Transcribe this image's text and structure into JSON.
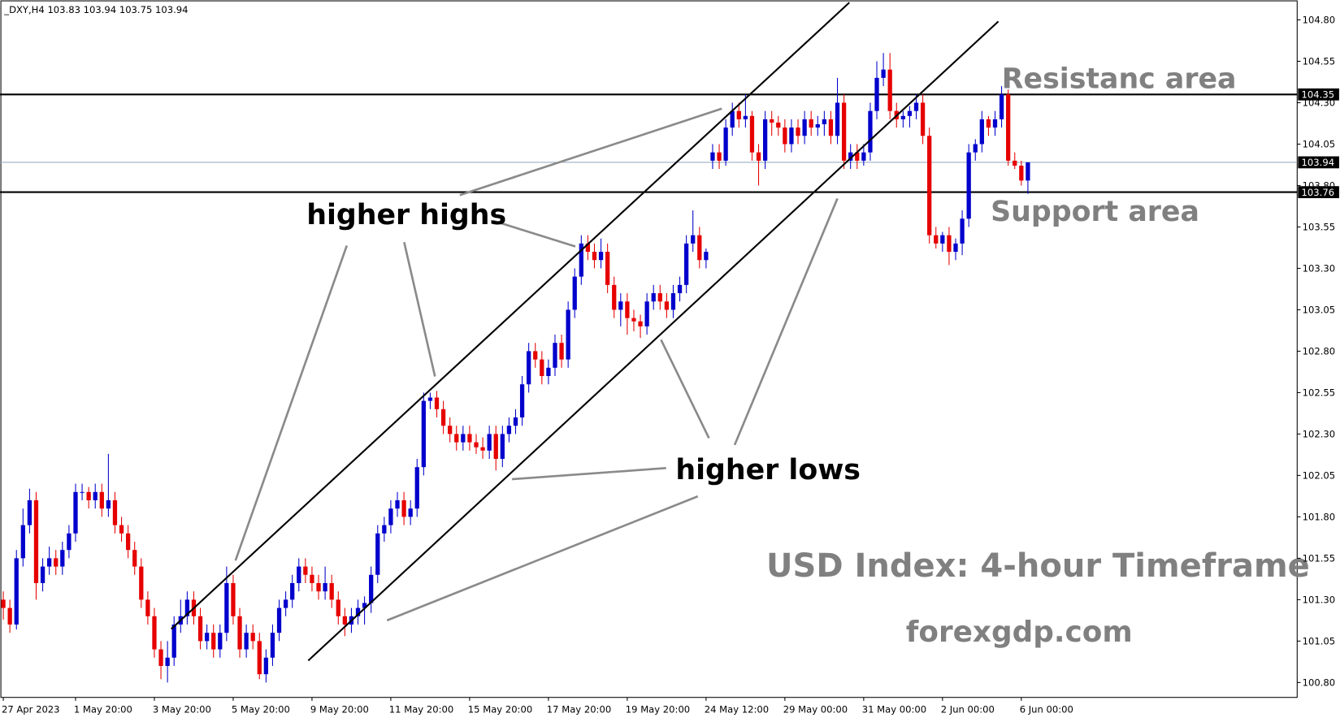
{
  "chart_data": {
    "type": "candlestick",
    "header": "_DXY,H4  103.83 103.94 103.75 103.94",
    "ylim": [
      100.71,
      104.92
    ],
    "yticks": [
      {
        "value": 104.8,
        "label": "104.80"
      },
      {
        "value": 104.55,
        "label": "104.55"
      },
      {
        "value": 104.3,
        "label": "104.30"
      },
      {
        "value": 104.05,
        "label": "104.05"
      },
      {
        "value": 103.8,
        "label": "103.80"
      },
      {
        "value": 103.55,
        "label": "103.55"
      },
      {
        "value": 103.3,
        "label": "103.30"
      },
      {
        "value": 103.05,
        "label": "103.05"
      },
      {
        "value": 102.8,
        "label": "102.80"
      },
      {
        "value": 102.55,
        "label": "102.55"
      },
      {
        "value": 102.3,
        "label": "102.30"
      },
      {
        "value": 102.05,
        "label": "102.05"
      },
      {
        "value": 101.8,
        "label": "101.80"
      },
      {
        "value": 101.55,
        "label": "101.55"
      },
      {
        "value": 101.3,
        "label": "101.30"
      },
      {
        "value": 101.05,
        "label": "101.05"
      },
      {
        "value": 100.8,
        "label": "100.80"
      }
    ],
    "xlim": [
      -0.5,
      197
    ],
    "xticks": [
      {
        "value": 0,
        "label": "27 Apr 2023"
      },
      {
        "value": 11,
        "label": "1 May 20:00"
      },
      {
        "value": 23,
        "label": "3 May 20:00"
      },
      {
        "value": 35,
        "label": "5 May 20:00"
      },
      {
        "value": 47,
        "label": "9 May 20:00"
      },
      {
        "value": 59,
        "label": "11 May 20:00"
      },
      {
        "value": 71,
        "label": "15 May 20:00"
      },
      {
        "value": 83,
        "label": "17 May 20:00"
      },
      {
        "value": 95,
        "label": "19 May 20:00"
      },
      {
        "value": 107,
        "label": "24 May 12:00"
      },
      {
        "value": 119,
        "label": "29 May 00:00"
      },
      {
        "value": 131,
        "label": "31 May 00:00"
      },
      {
        "value": 143,
        "label": "2 Jun 00:00"
      },
      {
        "value": 155,
        "label": "6 Jun 00:00"
      }
    ],
    "up_color": "#0000cc",
    "down_color": "#e60000",
    "candles": [
      [
        101.3,
        101.35,
        101.18,
        101.25
      ],
      [
        101.25,
        101.3,
        101.1,
        101.15
      ],
      [
        101.15,
        101.6,
        101.12,
        101.55
      ],
      [
        101.55,
        101.85,
        101.5,
        101.75
      ],
      [
        101.75,
        101.97,
        101.7,
        101.9
      ],
      [
        101.9,
        101.95,
        101.3,
        101.4
      ],
      [
        101.4,
        101.55,
        101.35,
        101.5
      ],
      [
        101.5,
        101.62,
        101.45,
        101.55
      ],
      [
        101.55,
        101.6,
        101.45,
        101.5
      ],
      [
        101.5,
        101.65,
        101.45,
        101.6
      ],
      [
        101.6,
        101.75,
        101.55,
        101.7
      ],
      [
        101.7,
        102.0,
        101.65,
        101.95
      ],
      [
        101.95,
        102.0,
        101.9,
        101.95
      ],
      [
        101.95,
        101.98,
        101.85,
        101.9
      ],
      [
        101.9,
        102.0,
        101.85,
        101.95
      ],
      [
        101.95,
        102.0,
        101.8,
        101.85
      ],
      [
        101.85,
        102.18,
        101.8,
        101.9
      ],
      [
        101.9,
        101.95,
        101.7,
        101.75
      ],
      [
        101.75,
        101.8,
        101.65,
        101.7
      ],
      [
        101.7,
        101.75,
        101.55,
        101.6
      ],
      [
        101.6,
        101.65,
        101.45,
        101.5
      ],
      [
        101.5,
        101.55,
        101.25,
        101.3
      ],
      [
        101.3,
        101.35,
        101.15,
        101.2
      ],
      [
        101.2,
        101.25,
        100.95,
        101.0
      ],
      [
        101.0,
        101.05,
        100.82,
        100.9
      ],
      [
        100.9,
        101.05,
        100.8,
        100.95
      ],
      [
        100.95,
        101.2,
        100.9,
        101.15
      ],
      [
        101.15,
        101.3,
        101.1,
        101.2
      ],
      [
        101.2,
        101.35,
        101.15,
        101.3
      ],
      [
        101.3,
        101.35,
        101.15,
        101.2
      ],
      [
        101.2,
        101.25,
        101.0,
        101.05
      ],
      [
        101.05,
        101.15,
        101.0,
        101.1
      ],
      [
        101.1,
        101.15,
        100.95,
        101.0
      ],
      [
        101.0,
        101.15,
        100.95,
        101.1
      ],
      [
        101.1,
        101.5,
        101.05,
        101.4
      ],
      [
        101.4,
        101.45,
        101.15,
        101.2
      ],
      [
        101.2,
        101.25,
        100.95,
        101.0
      ],
      [
        101.0,
        101.15,
        100.95,
        101.1
      ],
      [
        101.1,
        101.15,
        101.0,
        101.05
      ],
      [
        101.05,
        101.1,
        100.82,
        100.85
      ],
      [
        100.85,
        101.0,
        100.8,
        100.95
      ],
      [
        100.95,
        101.15,
        100.9,
        101.1
      ],
      [
        101.1,
        101.3,
        101.05,
        101.25
      ],
      [
        101.25,
        101.35,
        101.2,
        101.3
      ],
      [
        101.3,
        101.45,
        101.25,
        101.4
      ],
      [
        101.4,
        101.55,
        101.35,
        101.5
      ],
      [
        101.5,
        101.55,
        101.4,
        101.45
      ],
      [
        101.45,
        101.5,
        101.35,
        101.4
      ],
      [
        101.4,
        101.45,
        101.3,
        101.35
      ],
      [
        101.35,
        101.5,
        101.3,
        101.4
      ],
      [
        101.4,
        101.45,
        101.25,
        101.3
      ],
      [
        101.3,
        101.35,
        101.15,
        101.2
      ],
      [
        101.2,
        101.25,
        101.08,
        101.15
      ],
      [
        101.15,
        101.25,
        101.1,
        101.2
      ],
      [
        101.2,
        101.3,
        101.15,
        101.25
      ],
      [
        101.25,
        101.32,
        101.15,
        101.28
      ],
      [
        101.28,
        101.5,
        101.22,
        101.45
      ],
      [
        101.45,
        101.75,
        101.4,
        101.7
      ],
      [
        101.7,
        101.8,
        101.65,
        101.75
      ],
      [
        101.75,
        101.9,
        101.7,
        101.85
      ],
      [
        101.85,
        101.95,
        101.8,
        101.9
      ],
      [
        101.9,
        101.95,
        101.75,
        101.8
      ],
      [
        101.8,
        101.9,
        101.75,
        101.85
      ],
      [
        101.85,
        102.15,
        101.8,
        102.1
      ],
      [
        102.1,
        102.55,
        102.05,
        102.5
      ],
      [
        102.5,
        102.55,
        102.45,
        102.52
      ],
      [
        102.52,
        102.56,
        102.4,
        102.45
      ],
      [
        102.45,
        102.5,
        102.3,
        102.35
      ],
      [
        102.35,
        102.4,
        102.25,
        102.3
      ],
      [
        102.3,
        102.35,
        102.2,
        102.25
      ],
      [
        102.25,
        102.35,
        102.2,
        102.3
      ],
      [
        102.3,
        102.35,
        102.2,
        102.25
      ],
      [
        102.25,
        102.3,
        102.18,
        102.22
      ],
      [
        102.22,
        102.28,
        102.15,
        102.2
      ],
      [
        102.2,
        102.35,
        102.15,
        102.3
      ],
      [
        102.3,
        102.35,
        102.08,
        102.15
      ],
      [
        102.15,
        102.35,
        102.1,
        102.3
      ],
      [
        102.3,
        102.4,
        102.25,
        102.35
      ],
      [
        102.35,
        102.45,
        102.3,
        102.4
      ],
      [
        102.4,
        102.65,
        102.35,
        102.6
      ],
      [
        102.6,
        102.85,
        102.55,
        102.8
      ],
      [
        102.8,
        102.85,
        102.7,
        102.75
      ],
      [
        102.75,
        102.8,
        102.6,
        102.65
      ],
      [
        102.65,
        102.75,
        102.6,
        102.7
      ],
      [
        102.7,
        102.9,
        102.65,
        102.85
      ],
      [
        102.85,
        102.9,
        102.7,
        102.75
      ],
      [
        102.75,
        103.1,
        102.7,
        103.05
      ],
      [
        103.05,
        103.3,
        103.0,
        103.25
      ],
      [
        103.25,
        103.5,
        103.2,
        103.45
      ],
      [
        103.45,
        103.5,
        103.35,
        103.4
      ],
      [
        103.4,
        103.45,
        103.3,
        103.35
      ],
      [
        103.35,
        103.48,
        103.3,
        103.4
      ],
      [
        103.4,
        103.45,
        103.15,
        103.2
      ],
      [
        103.2,
        103.25,
        103.0,
        103.05
      ],
      [
        103.05,
        103.15,
        102.95,
        103.1
      ],
      [
        103.1,
        103.15,
        102.9,
        103.0
      ],
      [
        103.0,
        103.05,
        102.92,
        102.98
      ],
      [
        102.98,
        103.02,
        102.88,
        102.95
      ],
      [
        102.95,
        103.15,
        102.9,
        103.1
      ],
      [
        103.1,
        103.2,
        103.05,
        103.15
      ],
      [
        103.15,
        103.2,
        103.05,
        103.1
      ],
      [
        103.1,
        103.15,
        103.0,
        103.05
      ],
      [
        103.05,
        103.2,
        103.0,
        103.15
      ],
      [
        103.15,
        103.25,
        103.1,
        103.2
      ],
      [
        103.2,
        103.5,
        103.15,
        103.45
      ],
      [
        103.45,
        103.65,
        103.4,
        103.5
      ],
      [
        103.5,
        103.55,
        103.3,
        103.35
      ],
      [
        103.35,
        103.42,
        103.3,
        103.4
      ],
      [
        103.95,
        104.05,
        103.9,
        104.0
      ],
      [
        104.0,
        104.05,
        103.9,
        103.95
      ],
      [
        103.95,
        104.2,
        103.92,
        104.15
      ],
      [
        104.15,
        104.3,
        104.1,
        104.25
      ],
      [
        104.25,
        104.3,
        104.15,
        104.2
      ],
      [
        104.2,
        104.35,
        104.15,
        104.22
      ],
      [
        104.22,
        104.25,
        103.95,
        104.0
      ],
      [
        104.0,
        104.05,
        103.8,
        103.95
      ],
      [
        103.95,
        104.25,
        103.9,
        104.2
      ],
      [
        104.2,
        104.25,
        104.1,
        104.18
      ],
      [
        104.18,
        104.22,
        104.1,
        104.15
      ],
      [
        104.15,
        104.2,
        104.0,
        104.05
      ],
      [
        104.05,
        104.2,
        104.0,
        104.15
      ],
      [
        104.15,
        104.2,
        104.05,
        104.1
      ],
      [
        104.1,
        104.25,
        104.05,
        104.2
      ],
      [
        104.2,
        104.25,
        104.1,
        104.15
      ],
      [
        104.15,
        104.22,
        104.1,
        104.17
      ],
      [
        104.17,
        104.25,
        104.1,
        104.2
      ],
      [
        104.2,
        104.25,
        104.05,
        104.1
      ],
      [
        104.1,
        104.45,
        104.05,
        104.3
      ],
      [
        104.3,
        104.35,
        103.9,
        103.95
      ],
      [
        103.95,
        104.05,
        103.9,
        104.0
      ],
      [
        104.0,
        104.05,
        103.9,
        103.95
      ],
      [
        103.95,
        104.05,
        103.92,
        104.0
      ],
      [
        104.0,
        104.3,
        103.95,
        104.25
      ],
      [
        104.25,
        104.55,
        104.2,
        104.45
      ],
      [
        104.45,
        104.6,
        104.4,
        104.5
      ],
      [
        104.5,
        104.6,
        104.2,
        104.25
      ],
      [
        104.25,
        104.3,
        104.15,
        104.2
      ],
      [
        104.2,
        104.25,
        104.15,
        104.22
      ],
      [
        104.22,
        104.28,
        104.15,
        104.25
      ],
      [
        104.25,
        104.35,
        104.2,
        104.3
      ],
      [
        104.3,
        104.35,
        104.05,
        104.1
      ],
      [
        104.1,
        104.15,
        103.45,
        103.5
      ],
      [
        103.5,
        103.55,
        103.42,
        103.45
      ],
      [
        103.45,
        103.52,
        103.4,
        103.5
      ],
      [
        103.5,
        103.55,
        103.32,
        103.4
      ],
      [
        103.4,
        103.48,
        103.35,
        103.45
      ],
      [
        103.45,
        103.65,
        103.38,
        103.6
      ],
      [
        103.6,
        104.05,
        103.55,
        104.0
      ],
      [
        104.0,
        104.08,
        103.95,
        104.05
      ],
      [
        104.05,
        104.25,
        104.0,
        104.2
      ],
      [
        104.2,
        104.22,
        104.1,
        104.15
      ],
      [
        104.15,
        104.25,
        104.1,
        104.2
      ],
      [
        104.2,
        104.4,
        104.15,
        104.35
      ],
      [
        104.35,
        104.38,
        103.92,
        103.95
      ],
      [
        103.95,
        104.0,
        103.9,
        103.92
      ],
      [
        103.92,
        103.95,
        103.8,
        103.83
      ],
      [
        103.83,
        103.94,
        103.75,
        103.94
      ]
    ],
    "levels": [
      {
        "value": 104.35,
        "color": "#000000"
      },
      {
        "value": 103.94,
        "color": "#8fa5bd"
      },
      {
        "value": 103.76,
        "color": "#000000"
      }
    ],
    "annotations": {
      "higher_highs": "higher highs",
      "higher_lows": "higher lows",
      "resistance": "Resistanc area",
      "support": "Support area",
      "title": "USD Index: 4-hour Timeframe",
      "site": "forexgdp.com"
    }
  }
}
